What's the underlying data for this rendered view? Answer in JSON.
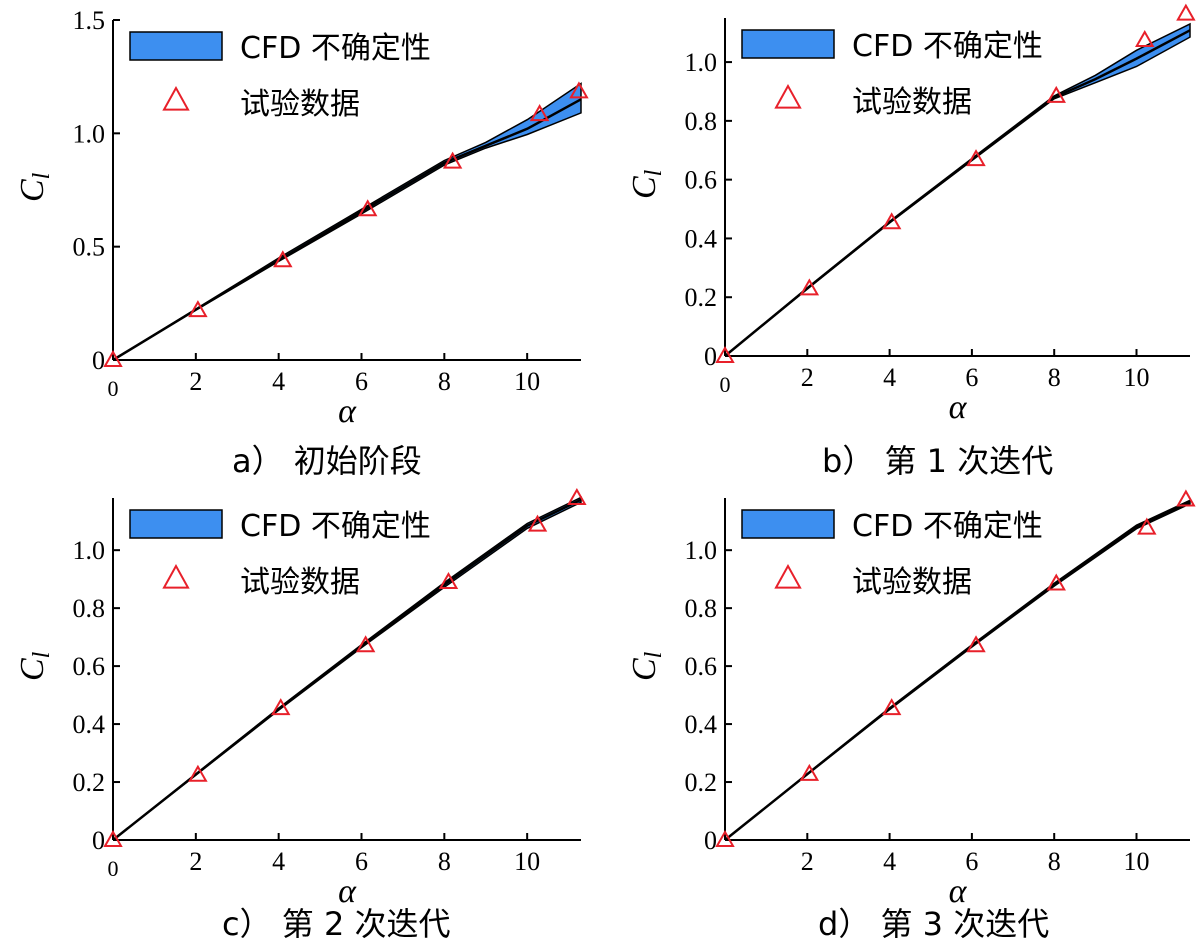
{
  "colors": {
    "band_fill": "#3d8ff0",
    "band_edge": "#000000",
    "curve": "#000000",
    "marker": "#e8202a",
    "axis": "#000000"
  },
  "chart_data": [
    {
      "type": "line",
      "caption": "a） 初始阶段",
      "xlabel": "α",
      "ylabel": "C",
      "ylabel_sub": "l",
      "xlim": [
        0,
        11.3
      ],
      "ylim": [
        0,
        1.5
      ],
      "x_ticks": [
        "0",
        "2",
        "4",
        "6",
        "8",
        "10"
      ],
      "x_tick_values": [
        0,
        2,
        4,
        6,
        8,
        10
      ],
      "y_ticks": [
        "0",
        "0.5",
        "1.0",
        "1.5"
      ],
      "y_tick_values": [
        0,
        0.5,
        1.0,
        1.5
      ],
      "legend": [
        "CFD 不确定性",
        "试验数据"
      ],
      "legend_placement": "top-left",
      "series": [
        {
          "name": "CFD 不确定性",
          "kind": "band",
          "x": [
            0,
            2,
            4,
            6,
            8,
            9,
            10,
            11.3
          ],
          "lower": [
            0,
            0.22,
            0.435,
            0.645,
            0.86,
            0.935,
            0.995,
            1.09
          ],
          "upper": [
            0,
            0.225,
            0.45,
            0.665,
            0.88,
            0.96,
            1.06,
            1.22
          ]
        },
        {
          "name": "",
          "kind": "line",
          "x": [
            0,
            2,
            4,
            6,
            8,
            9,
            10,
            11.3
          ],
          "y": [
            0,
            0.222,
            0.44,
            0.655,
            0.87,
            0.945,
            1.02,
            1.15
          ]
        },
        {
          "name": "试验数据",
          "kind": "scatter",
          "x": [
            0,
            2.05,
            4.1,
            6.15,
            8.2,
            10.3,
            11.25
          ],
          "y": [
            0,
            0.22,
            0.44,
            0.665,
            0.875,
            1.085,
            1.185
          ]
        }
      ]
    },
    {
      "type": "line",
      "caption": "b） 第 1 次迭代",
      "xlabel": "α",
      "ylabel": "C",
      "ylabel_sub": "l",
      "xlim": [
        0,
        11.3
      ],
      "ylim": [
        0,
        1.15
      ],
      "x_ticks": [
        "0",
        "2",
        "4",
        "6",
        "8",
        "10"
      ],
      "x_tick_values": [
        0,
        2,
        4,
        6,
        8,
        10
      ],
      "y_ticks": [
        "0",
        "0.2",
        "0.4",
        "0.6",
        "0.8",
        "1.0"
      ],
      "y_tick_values": [
        0,
        0.2,
        0.4,
        0.6,
        0.8,
        1.0
      ],
      "legend": [
        "CFD 不确定性",
        "试验数据"
      ],
      "legend_placement": "top-left",
      "series": [
        {
          "name": "CFD 不确定性",
          "kind": "band",
          "x": [
            0,
            2,
            4,
            6,
            8,
            9,
            10,
            11.3
          ],
          "lower": [
            0,
            0.228,
            0.453,
            0.665,
            0.875,
            0.93,
            0.985,
            1.085
          ],
          "upper": [
            0,
            0.232,
            0.458,
            0.672,
            0.885,
            0.955,
            1.04,
            1.13
          ]
        },
        {
          "name": "",
          "kind": "line",
          "x": [
            0,
            2,
            4,
            6,
            8,
            9,
            10,
            11.3
          ],
          "y": [
            0,
            0.23,
            0.455,
            0.668,
            0.88,
            0.942,
            1.012,
            1.108
          ]
        },
        {
          "name": "试验数据",
          "kind": "scatter",
          "x": [
            0,
            2.05,
            4.05,
            6.1,
            8.05,
            10.2,
            11.2
          ],
          "y": [
            0,
            0.23,
            0.455,
            0.67,
            0.885,
            1.075,
            1.165
          ]
        }
      ]
    },
    {
      "type": "line",
      "caption": "c） 第 2 次迭代",
      "xlabel": "α",
      "ylabel": "C",
      "ylabel_sub": "l",
      "xlim": [
        0,
        11.3
      ],
      "ylim": [
        0,
        1.18
      ],
      "x_ticks": [
        "0",
        "2",
        "4",
        "6",
        "8",
        "10"
      ],
      "x_tick_values": [
        0,
        2,
        4,
        6,
        8,
        10
      ],
      "y_ticks": [
        "0",
        "0.2",
        "0.4",
        "0.6",
        "0.8",
        "1.0"
      ],
      "y_tick_values": [
        0,
        0.2,
        0.4,
        0.6,
        0.8,
        1.0
      ],
      "legend": [
        "CFD 不确定性",
        "试验数据"
      ],
      "legend_placement": "top-left",
      "series": [
        {
          "name": "CFD 不确定性",
          "kind": "band",
          "x": [
            0,
            2,
            4,
            6,
            8,
            10,
            11.3
          ],
          "lower": [
            0,
            0.224,
            0.448,
            0.664,
            0.872,
            1.075,
            1.165
          ],
          "upper": [
            0,
            0.228,
            0.455,
            0.674,
            0.888,
            1.092,
            1.182
          ]
        },
        {
          "name": "",
          "kind": "line",
          "x": [
            0,
            2,
            4,
            6,
            8,
            10,
            11.3
          ],
          "y": [
            0,
            0.226,
            0.452,
            0.669,
            0.88,
            1.084,
            1.174
          ]
        },
        {
          "name": "试验数据",
          "kind": "scatter",
          "x": [
            0,
            2.05,
            4.05,
            6.1,
            8.1,
            10.25,
            11.2
          ],
          "y": [
            0,
            0.225,
            0.455,
            0.672,
            0.89,
            1.088,
            1.18
          ]
        }
      ]
    },
    {
      "type": "line",
      "caption": "d） 第 3 次迭代",
      "xlabel": "α",
      "ylabel": "C",
      "ylabel_sub": "l",
      "xlim": [
        0,
        11.3
      ],
      "ylim": [
        0,
        1.18
      ],
      "x_ticks": [
        "2",
        "4",
        "6",
        "8",
        "10"
      ],
      "x_tick_values": [
        2,
        4,
        6,
        8,
        10
      ],
      "y_ticks": [
        "0",
        "0.2",
        "0.4",
        "0.6",
        "0.8",
        "1.0"
      ],
      "y_tick_values": [
        0,
        0.2,
        0.4,
        0.6,
        0.8,
        1.0
      ],
      "legend": [
        "CFD 不确定性",
        "试验数据"
      ],
      "legend_placement": "top-left",
      "series": [
        {
          "name": "CFD 不确定性",
          "kind": "band",
          "x": [
            0,
            2,
            4,
            6,
            8,
            10,
            11.3
          ],
          "lower": [
            0,
            0.226,
            0.45,
            0.666,
            0.876,
            1.074,
            1.16
          ],
          "upper": [
            0,
            0.229,
            0.456,
            0.673,
            0.886,
            1.086,
            1.172
          ]
        },
        {
          "name": "",
          "kind": "line",
          "x": [
            0,
            2,
            4,
            6,
            8,
            10,
            11.3
          ],
          "y": [
            0,
            0.227,
            0.453,
            0.67,
            0.881,
            1.08,
            1.166
          ]
        },
        {
          "name": "试验数据",
          "kind": "scatter",
          "x": [
            0,
            2.05,
            4.05,
            6.1,
            8.05,
            10.25,
            11.2
          ],
          "y": [
            0,
            0.228,
            0.455,
            0.672,
            0.885,
            1.078,
            1.175
          ]
        }
      ]
    }
  ]
}
